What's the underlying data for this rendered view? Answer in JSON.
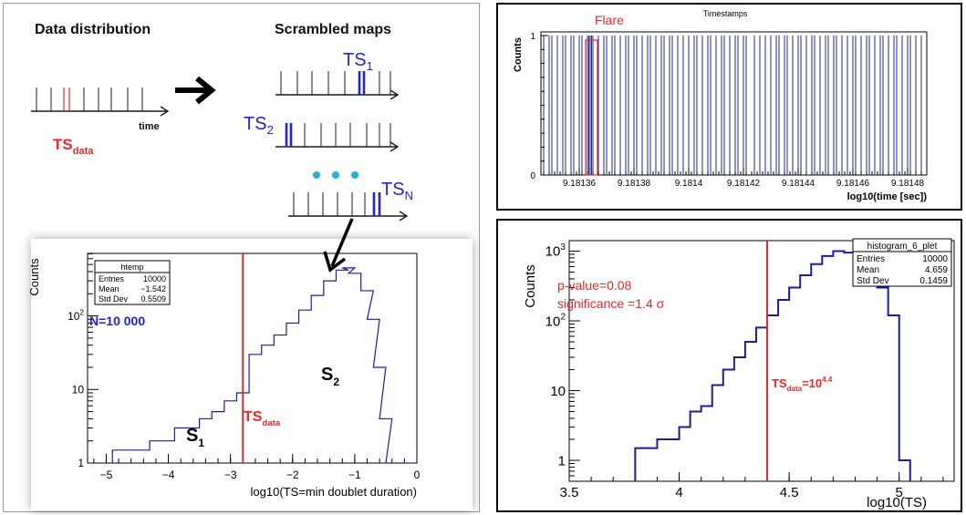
{
  "schematic": {
    "data_title": "Data distribution",
    "scrambled_title": "Scrambled maps",
    "time_label": "time",
    "ts_data": {
      "main": "TS",
      "sub": "data"
    },
    "ts1": {
      "main": "TS",
      "sub": "1"
    },
    "ts2": {
      "main": "TS",
      "sub": "2"
    },
    "tsn": {
      "main": "TS",
      "sub": "N"
    },
    "colors": {
      "red": "#e8262c",
      "blue": "#2323d6",
      "dot": "#1fb3cf",
      "line": "#1a1a1a"
    }
  },
  "chart_data": [
    {
      "type": "histogram",
      "id": "htemp",
      "xlabel": "log10(TS=min doublet duration)",
      "ylabel": "Counts",
      "xlim": [
        -5.3,
        0
      ],
      "ylog": true,
      "xticks": [
        "-5",
        "-4",
        "-3",
        "-2",
        "-1",
        "0"
      ],
      "yticks": [
        "1",
        "10",
        "10^2"
      ],
      "stats": {
        "title": "htemp",
        "rows": [
          [
            "Entries",
            "10000"
          ],
          [
            "Mean",
            "−1.542"
          ],
          [
            "Std Dev",
            "0.5509"
          ]
        ]
      },
      "annotations": {
        "n": "N=10 000",
        "s1": {
          "main": "S",
          "sub": "1"
        },
        "s2": {
          "main": "S",
          "sub": "2"
        },
        "ts": {
          "main": "TS",
          "sub": "data"
        }
      },
      "ts_data_x": -2.8,
      "series": [
        {
          "x": -4.9,
          "y": 1.5
        },
        {
          "x": -4.7,
          "y": 1.5
        },
        {
          "x": -4.5,
          "y": 1.5
        },
        {
          "x": -4.3,
          "y": 2
        },
        {
          "x": -4.1,
          "y": 2
        },
        {
          "x": -3.9,
          "y": 3
        },
        {
          "x": -3.7,
          "y": 3
        },
        {
          "x": -3.5,
          "y": 4
        },
        {
          "x": -3.3,
          "y": 5
        },
        {
          "x": -3.1,
          "y": 7
        },
        {
          "x": -2.9,
          "y": 9
        },
        {
          "x": -2.7,
          "y": 30
        },
        {
          "x": -2.5,
          "y": 40
        },
        {
          "x": -2.3,
          "y": 55
        },
        {
          "x": -2.1,
          "y": 80
        },
        {
          "x": -1.9,
          "y": 120
        },
        {
          "x": -1.7,
          "y": 190
        },
        {
          "x": -1.5,
          "y": 300
        },
        {
          "x": -1.3,
          "y": 420
        },
        {
          "x": -1.2,
          "y": 450
        },
        {
          "x": -1.1,
          "y": 380
        },
        {
          "x": -0.9,
          "y": 220
        },
        {
          "x": -0.8,
          "y": 90
        },
        {
          "x": -0.7,
          "y": 20
        },
        {
          "x": -0.6,
          "y": 4
        },
        {
          "x": -0.5,
          "y": 1
        },
        {
          "x": -0.4,
          "y": 1
        }
      ]
    },
    {
      "type": "bar",
      "id": "timestamps",
      "title": "Timestamps",
      "xlabel": "log10(time [sec])",
      "ylabel": "Counts",
      "xlim": [
        9.181346,
        9.181487
      ],
      "ylim": [
        0,
        1
      ],
      "xticks": [
        "9.18136",
        "9.18138",
        "9.1814",
        "9.18142",
        "9.18144",
        "9.18146",
        "9.18148"
      ],
      "xtick_values": [
        9.18136,
        9.18138,
        9.1814,
        9.18142,
        9.18144,
        9.18146,
        9.18148
      ],
      "yticks": [
        "0",
        "1"
      ],
      "annotation": "Flare",
      "flare_range": [
        9.181363,
        9.181366
      ],
      "events": [
        9.181347,
        9.181349,
        9.18135,
        9.181352,
        9.181354,
        9.181355,
        9.181357,
        9.181358,
        9.18136,
        9.181361,
        9.181363,
        9.1813635,
        9.181364,
        9.1813645,
        9.181365,
        9.181367,
        9.181369,
        9.18137,
        9.181372,
        9.181373,
        9.181375,
        9.181377,
        9.181378,
        9.18138,
        9.181381,
        9.181383,
        9.181385,
        9.181386,
        9.181388,
        9.18139,
        9.181391,
        9.181393,
        9.181394,
        9.181396,
        9.181398,
        9.1814,
        9.181402,
        9.181403,
        9.181405,
        9.181407,
        9.181408,
        9.18141,
        9.181412,
        9.181413,
        9.181415,
        9.181417,
        9.181418,
        9.18142,
        9.181421,
        9.181424,
        9.181426,
        9.181428,
        9.18143,
        9.181432,
        9.181433,
        9.181435,
        9.181436,
        9.181438,
        9.18144,
        9.181441,
        9.181443,
        9.181445,
        9.181446,
        9.181448,
        9.18145,
        9.181451,
        9.181453,
        9.181454,
        9.181456,
        9.181458,
        9.18146,
        9.181461,
        9.181463,
        9.181465,
        9.181466,
        9.181468,
        9.18147,
        9.181471,
        9.181473,
        9.181475,
        9.181476,
        9.181478,
        9.18148,
        9.181481,
        9.181483,
        9.181485
      ]
    },
    {
      "type": "histogram",
      "id": "histogram_6_plet",
      "xlabel": "log10(TS)",
      "ylabel": "Counts",
      "xlim": [
        3.5,
        5.25
      ],
      "ylog": true,
      "xticks": [
        "3.5",
        "4",
        "4.5",
        "5"
      ],
      "yticks": [
        "1",
        "10",
        "10^2",
        "10^3"
      ],
      "stats": {
        "title": "histogram_6_plet",
        "rows": [
          [
            "Entries",
            "10000"
          ],
          [
            "Mean",
            "4.659"
          ],
          [
            "Std Dev",
            "0.1459"
          ]
        ]
      },
      "annotations": {
        "pvalue": "p-value=0.08",
        "significance": "significance =1.4 σ",
        "ts": {
          "main": "TS",
          "sub": "data",
          "eq": "=10",
          "exp": "4.4"
        }
      },
      "ts_data_x": 4.4,
      "series": [
        {
          "x": 3.8,
          "y": 1.5
        },
        {
          "x": 3.85,
          "y": 1.5
        },
        {
          "x": 3.9,
          "y": 2
        },
        {
          "x": 3.95,
          "y": 2
        },
        {
          "x": 4.0,
          "y": 3
        },
        {
          "x": 4.05,
          "y": 5
        },
        {
          "x": 4.1,
          "y": 6
        },
        {
          "x": 4.15,
          "y": 12
        },
        {
          "x": 4.2,
          "y": 20
        },
        {
          "x": 4.25,
          "y": 30
        },
        {
          "x": 4.3,
          "y": 50
        },
        {
          "x": 4.35,
          "y": 80
        },
        {
          "x": 4.4,
          "y": 120
        },
        {
          "x": 4.45,
          "y": 200
        },
        {
          "x": 4.5,
          "y": 300
        },
        {
          "x": 4.55,
          "y": 450
        },
        {
          "x": 4.6,
          "y": 650
        },
        {
          "x": 4.65,
          "y": 850
        },
        {
          "x": 4.7,
          "y": 1000
        },
        {
          "x": 4.75,
          "y": 950
        },
        {
          "x": 4.8,
          "y": 800
        },
        {
          "x": 4.85,
          "y": 550
        },
        {
          "x": 4.9,
          "y": 300
        },
        {
          "x": 4.95,
          "y": 120
        },
        {
          "x": 5.0,
          "y": 1
        }
      ]
    }
  ]
}
